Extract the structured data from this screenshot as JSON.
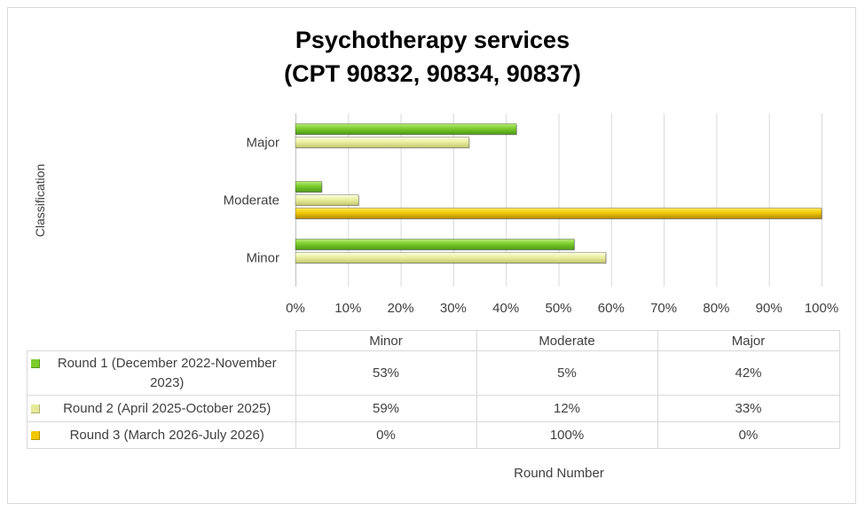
{
  "chart_data": {
    "type": "bar",
    "orientation": "horizontal",
    "title_line1": "Psychotherapy services",
    "title_line2": "(CPT 90832, 90834, 90837)",
    "ylabel": "Classification",
    "xlabel": "Round Number",
    "categories": [
      "Minor",
      "Moderate",
      "Major"
    ],
    "x_ticks": [
      "0%",
      "10%",
      "20%",
      "30%",
      "40%",
      "50%",
      "60%",
      "70%",
      "80%",
      "90%",
      "100%"
    ],
    "xlim": [
      0,
      100
    ],
    "grid": true,
    "legend_placement": "data-table",
    "series": [
      {
        "name": "Round 1 (December 2022-November 2023)",
        "values": [
          53,
          5,
          42
        ],
        "labels": [
          "53%",
          "5%",
          "42%"
        ],
        "color": "#7ccc2e"
      },
      {
        "name": "Round 2 (April 2025-October 2025)",
        "values": [
          59,
          12,
          33
        ],
        "labels": [
          "59%",
          "12%",
          "33%"
        ],
        "color": "#ecf0a0"
      },
      {
        "name": "Round 3 (March 2026-July 2026)",
        "values": [
          0,
          100,
          0
        ],
        "labels": [
          "0%",
          "100%",
          "0%"
        ],
        "color": "#f2c800"
      }
    ]
  }
}
